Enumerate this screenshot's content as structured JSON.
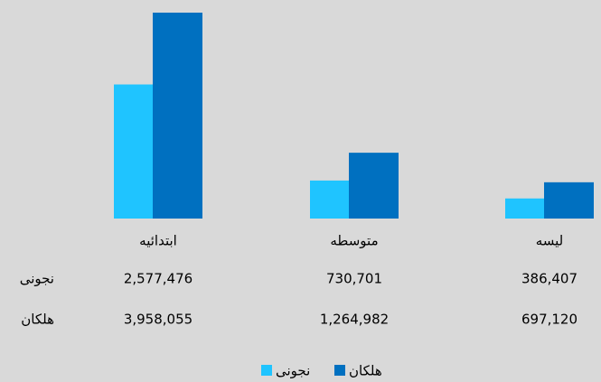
{
  "chart_data": {
    "type": "bar",
    "categories": [
      "ابتدائیه",
      "متوسطه",
      "لیسه"
    ],
    "series": [
      {
        "name": "نجونی",
        "color": "#1fc4ff",
        "values": [
          2577476,
          730701,
          386407
        ],
        "value_labels": [
          "2,577,476",
          "730,701",
          "386,407"
        ]
      },
      {
        "name": "هلکان",
        "color": "#0070c0",
        "values": [
          3958055,
          1264982,
          697120
        ],
        "value_labels": [
          "3,958,055",
          "1,264,982",
          "697,120"
        ]
      }
    ]
  }
}
